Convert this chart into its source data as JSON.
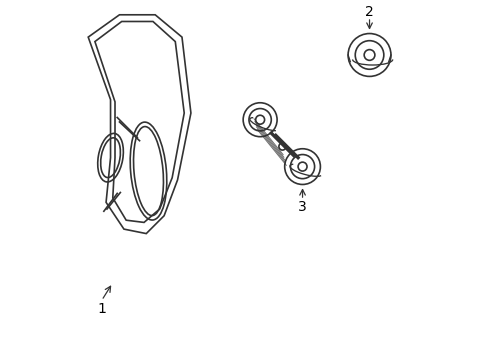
{
  "background_color": "#ffffff",
  "line_color": "#333333",
  "line_width": 1.2,
  "label_color": "#000000",
  "labels": [
    "1",
    "2",
    "3"
  ],
  "figsize": [
    4.89,
    3.6
  ],
  "dpi": 100
}
